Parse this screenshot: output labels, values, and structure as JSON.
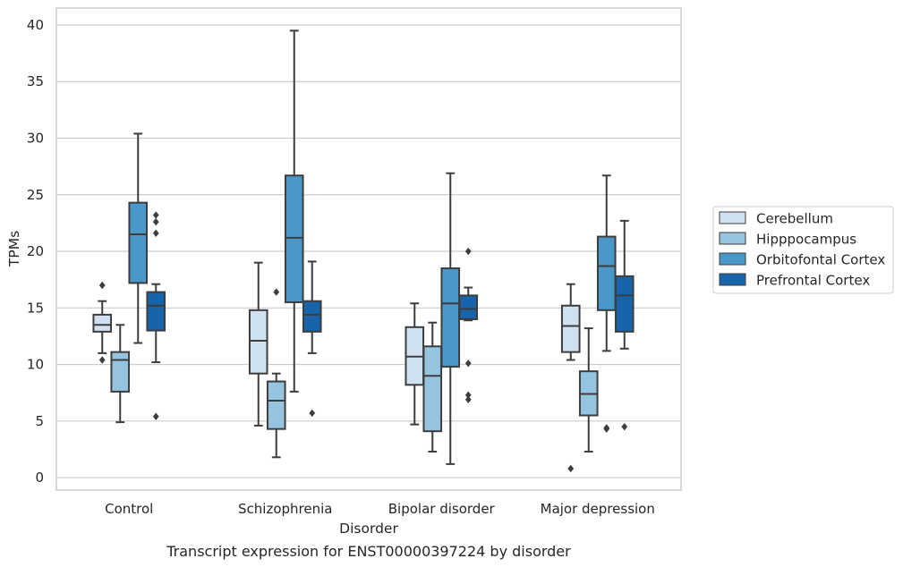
{
  "chart_data": {
    "type": "boxplot",
    "caption": "Transcript expression for ENST00000397224 by disorder",
    "xlabel": "Disorder",
    "ylabel": "TPMs",
    "ylim": [
      -1.1,
      41.5
    ],
    "yticks": [
      0,
      5,
      10,
      15,
      20,
      25,
      30,
      35,
      40
    ],
    "grid": "horizontal",
    "legend_position": "right",
    "categories": [
      "Control",
      "Schizophrenia",
      "Bipolar disorder",
      "Major depression"
    ],
    "series": [
      {
        "name": "Cerebellum",
        "color": "#d0e1f2",
        "boxes": [
          {
            "whislo": 11.0,
            "q1": 12.9,
            "med": 13.5,
            "q3": 14.4,
            "whishi": 15.6,
            "fliers": [
              17.0,
              10.4
            ]
          },
          {
            "whislo": 4.6,
            "q1": 9.2,
            "med": 12.1,
            "q3": 14.8,
            "whishi": 19.0,
            "fliers": []
          },
          {
            "whislo": 4.7,
            "q1": 8.2,
            "med": 10.7,
            "q3": 13.3,
            "whishi": 15.4,
            "fliers": []
          },
          {
            "whislo": 10.4,
            "q1": 11.1,
            "med": 13.4,
            "q3": 15.2,
            "whishi": 17.1,
            "fliers": [
              0.8
            ]
          }
        ]
      },
      {
        "name": "Hipppocampus",
        "color": "#94c4df",
        "boxes": [
          {
            "whislo": 4.9,
            "q1": 7.6,
            "med": 10.4,
            "q3": 11.1,
            "whishi": 13.5,
            "fliers": []
          },
          {
            "whislo": 1.8,
            "q1": 4.3,
            "med": 6.8,
            "q3": 8.5,
            "whishi": 9.2,
            "fliers": [
              16.4
            ]
          },
          {
            "whislo": 2.3,
            "q1": 4.1,
            "med": 9.0,
            "q3": 11.6,
            "whishi": 13.7,
            "fliers": []
          },
          {
            "whislo": 2.3,
            "q1": 5.5,
            "med": 7.4,
            "q3": 9.4,
            "whishi": 13.2,
            "fliers": []
          }
        ]
      },
      {
        "name": "Orbitofontal Cortex",
        "color": "#4a98c9",
        "boxes": [
          {
            "whislo": 11.9,
            "q1": 17.2,
            "med": 21.5,
            "q3": 24.3,
            "whishi": 30.4,
            "fliers": []
          },
          {
            "whislo": 7.6,
            "q1": 15.5,
            "med": 21.2,
            "q3": 26.7,
            "whishi": 39.5,
            "fliers": []
          },
          {
            "whislo": 1.2,
            "q1": 9.8,
            "med": 15.4,
            "q3": 18.5,
            "whishi": 26.9,
            "fliers": []
          },
          {
            "whislo": 11.2,
            "q1": 14.8,
            "med": 18.7,
            "q3": 21.3,
            "whishi": 26.7,
            "fliers": [
              4.3,
              4.4
            ]
          }
        ]
      },
      {
        "name": "Prefrontal Cortex",
        "color": "#1764ab",
        "boxes": [
          {
            "whislo": 10.2,
            "q1": 13.0,
            "med": 15.2,
            "q3": 16.4,
            "whishi": 17.1,
            "fliers": [
              23.2,
              22.6,
              21.6,
              5.4
            ]
          },
          {
            "whislo": 11.0,
            "q1": 12.9,
            "med": 14.4,
            "q3": 15.6,
            "whishi": 19.1,
            "fliers": [
              5.7
            ]
          },
          {
            "whislo": 13.9,
            "q1": 14.0,
            "med": 14.9,
            "q3": 16.1,
            "whishi": 16.8,
            "fliers": [
              20.0,
              10.1,
              7.3,
              6.9
            ]
          },
          {
            "whislo": 11.4,
            "q1": 12.9,
            "med": 16.1,
            "q3": 17.8,
            "whishi": 22.7,
            "fliers": [
              4.5
            ]
          }
        ]
      }
    ]
  }
}
